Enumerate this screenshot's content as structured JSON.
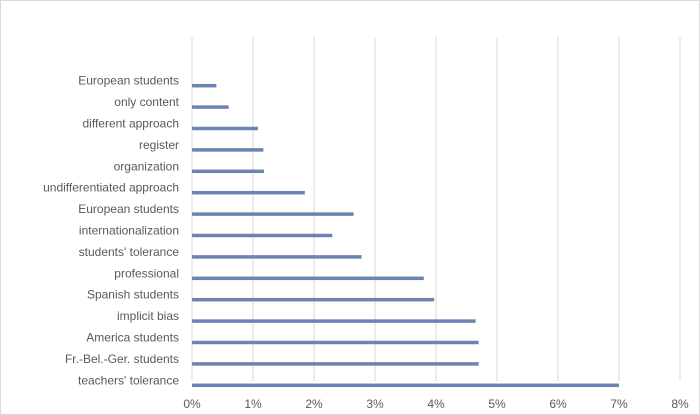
{
  "chart_data": {
    "type": "bar",
    "orientation": "horizontal",
    "categories": [
      "teachers' tolerance",
      "Fr.-Bel.-Ger. students",
      "America students",
      "implicit bias",
      "Spanish students",
      "professional",
      "students' tolerance",
      "internationalization",
      "European students",
      "undifferentiated approach",
      "organization",
      "register",
      "different approach",
      "only content",
      "European students"
    ],
    "values": [
      7.0,
      4.7,
      4.7,
      4.65,
      3.97,
      3.8,
      2.78,
      2.3,
      2.65,
      1.85,
      1.18,
      1.17,
      1.08,
      0.6,
      0.4
    ],
    "xlim": [
      0,
      8
    ],
    "x_ticks": [
      "0%",
      "1%",
      "2%",
      "3%",
      "4%",
      "5%",
      "6%",
      "7%",
      "8%"
    ],
    "x_tick_values": [
      0,
      1,
      2,
      3,
      4,
      5,
      6,
      7,
      8
    ],
    "grid": true,
    "colors": {
      "bar": "#6b84b3",
      "grid": "#d9d9d9",
      "text": "#595959"
    }
  }
}
